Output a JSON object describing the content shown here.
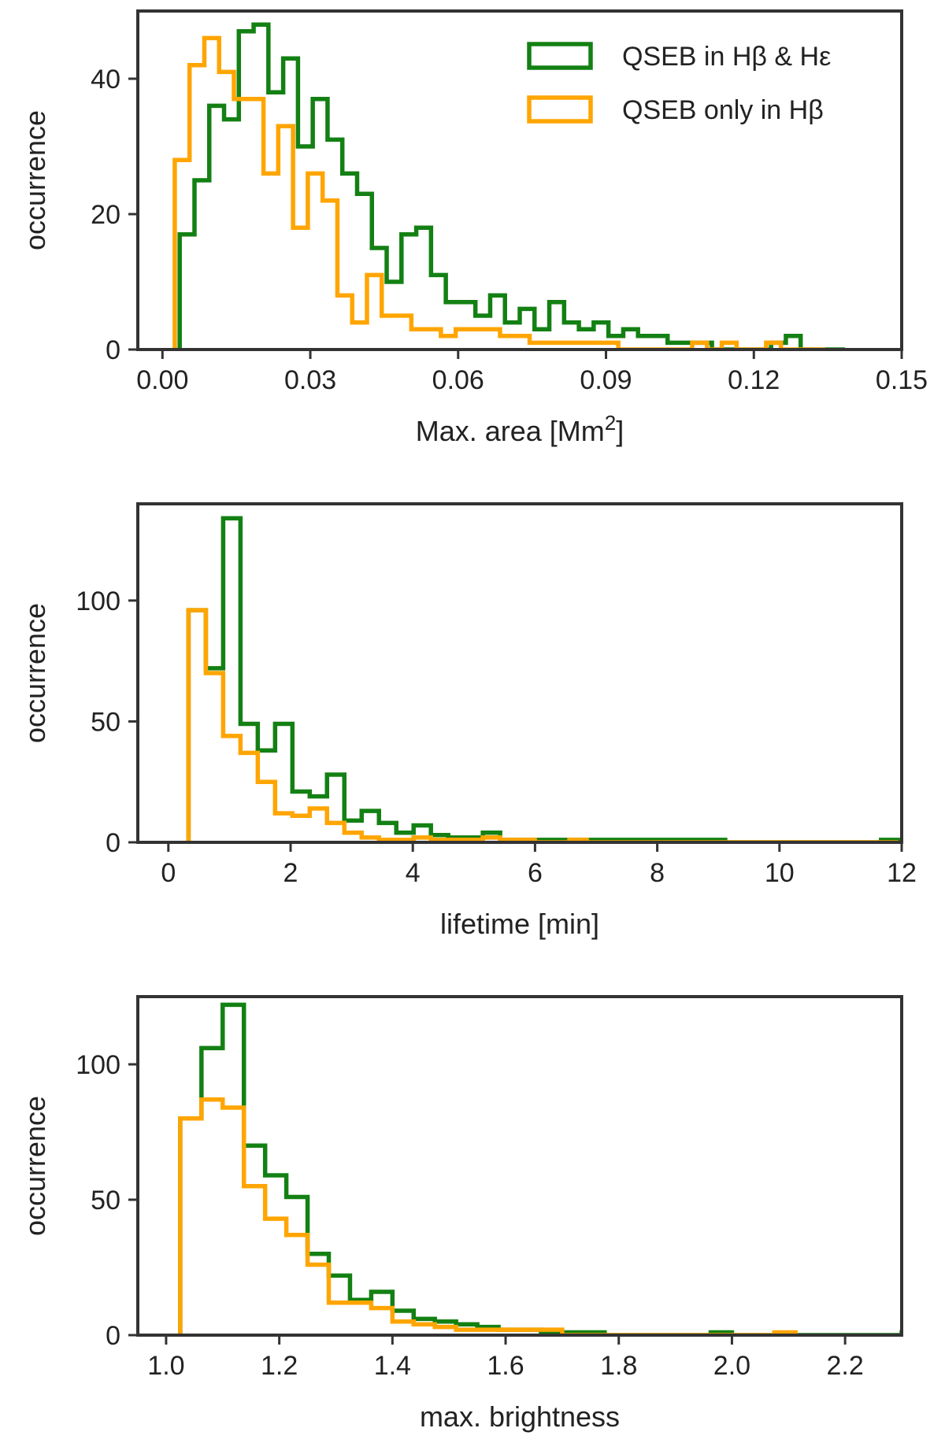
{
  "colors": {
    "green": "#138013",
    "orange": "#FFA500",
    "axis": "#333333"
  },
  "legend": {
    "placement": "upper-right",
    "entries": [
      {
        "name": "QSEB in Hβ & Hε",
        "color": "#138013"
      },
      {
        "name": "QSEB only in Hβ",
        "color": "#FFA500"
      }
    ]
  },
  "chart_data": [
    {
      "type": "histogram",
      "xlabel": "Max. area [Mm²]",
      "ylabel": "occurrence",
      "xlim": [
        -0.005,
        0.15
      ],
      "ylim": [
        0,
        50
      ],
      "xticks": [
        0.0,
        0.03,
        0.06,
        0.09,
        0.12,
        0.15
      ],
      "xtick_labels": [
        "0.00",
        "0.03",
        "0.06",
        "0.09",
        "0.12",
        "0.15"
      ],
      "yticks": [
        0,
        20,
        40
      ],
      "grid": false,
      "series": [
        {
          "name": "QSEB in Hβ & Hε",
          "color": "#138013",
          "x_start": 0.0035,
          "bin_width": 0.003,
          "counts": [
            17,
            25,
            36,
            34,
            47,
            48,
            38,
            43,
            30,
            37,
            31,
            26,
            23,
            15,
            10,
            17,
            18,
            11,
            7,
            7,
            5,
            8,
            4,
            6,
            3,
            7,
            4,
            3,
            4,
            2,
            3,
            2,
            2,
            1,
            1,
            1,
            0,
            0,
            0,
            0,
            1,
            2,
            0,
            0,
            0
          ]
        },
        {
          "name": "QSEB only in Hβ",
          "color": "#FFA500",
          "x_start": 0.0025,
          "bin_width": 0.003,
          "counts": [
            28,
            42,
            46,
            41,
            37,
            37,
            26,
            33,
            18,
            26,
            22,
            8,
            4,
            11,
            5,
            5,
            3,
            3,
            2,
            3,
            3,
            3,
            2,
            2,
            1,
            1,
            1,
            1,
            1,
            1,
            0,
            0,
            0,
            0,
            0,
            1,
            0,
            1,
            0,
            0,
            1,
            0,
            0,
            0
          ]
        }
      ]
    },
    {
      "type": "histogram",
      "xlabel": "lifetime [min]",
      "ylabel": "occurrence",
      "xlim": [
        -0.5,
        12
      ],
      "ylim": [
        0,
        140
      ],
      "xticks": [
        0,
        2,
        4,
        6,
        8,
        10,
        12
      ],
      "xtick_labels": [
        "0",
        "2",
        "4",
        "6",
        "8",
        "10",
        "12"
      ],
      "yticks": [
        0,
        50,
        100
      ],
      "grid": false,
      "series": [
        {
          "name": "QSEB in Hβ & Hε",
          "color": "#138013",
          "x_start": 0.33,
          "bin_width": 0.2833,
          "counts": [
            96,
            72,
            134,
            49,
            38,
            49,
            21,
            19,
            28,
            9,
            13,
            8,
            4,
            7,
            3,
            2,
            2,
            4,
            1,
            1,
            1,
            1,
            1,
            1,
            1,
            1,
            1,
            1,
            1,
            1,
            1,
            0,
            0,
            0,
            0,
            0,
            0,
            0,
            0,
            0,
            1
          ]
        },
        {
          "name": "QSEB only in Hβ",
          "color": "#FFA500",
          "x_start": 0.33,
          "bin_width": 0.2833,
          "counts": [
            96,
            70,
            44,
            37,
            25,
            12,
            11,
            14,
            8,
            4,
            2,
            1,
            1,
            2,
            1,
            1,
            1,
            2,
            1,
            1,
            0,
            0,
            1,
            0,
            0,
            0,
            0,
            0,
            0,
            0,
            0,
            0,
            0,
            0,
            0,
            0,
            0,
            0,
            0,
            0,
            0
          ]
        }
      ]
    },
    {
      "type": "histogram",
      "xlabel": "max. brightness",
      "ylabel": "occurrence",
      "xlim": [
        0.95,
        2.3
      ],
      "ylim": [
        0,
        125
      ],
      "xticks": [
        1.0,
        1.2,
        1.4,
        1.6,
        1.8,
        2.0,
        2.2
      ],
      "xtick_labels": [
        "1.0",
        "1.2",
        "1.4",
        "1.6",
        "1.8",
        "2.0",
        "2.2"
      ],
      "yticks": [
        0,
        50,
        100
      ],
      "grid": false,
      "series": [
        {
          "name": "QSEB in Hβ & Hε",
          "color": "#138013",
          "x_start": 1.025,
          "bin_width": 0.0375,
          "counts": [
            80,
            106,
            122,
            70,
            59,
            51,
            30,
            22,
            13,
            16,
            9,
            6,
            5,
            4,
            3,
            2,
            2,
            1,
            1,
            1,
            0,
            0,
            0,
            0,
            0,
            1,
            0,
            0,
            0,
            0,
            0,
            0,
            0,
            0,
            1
          ]
        },
        {
          "name": "QSEB only in Hβ",
          "color": "#FFA500",
          "x_start": 1.025,
          "bin_width": 0.0375,
          "counts": [
            80,
            87,
            84,
            55,
            43,
            37,
            26,
            12,
            12,
            10,
            5,
            4,
            3,
            2,
            2,
            2,
            2,
            2,
            0,
            0,
            0,
            0,
            0,
            0,
            0,
            0,
            0,
            0,
            1
          ]
        }
      ]
    }
  ]
}
